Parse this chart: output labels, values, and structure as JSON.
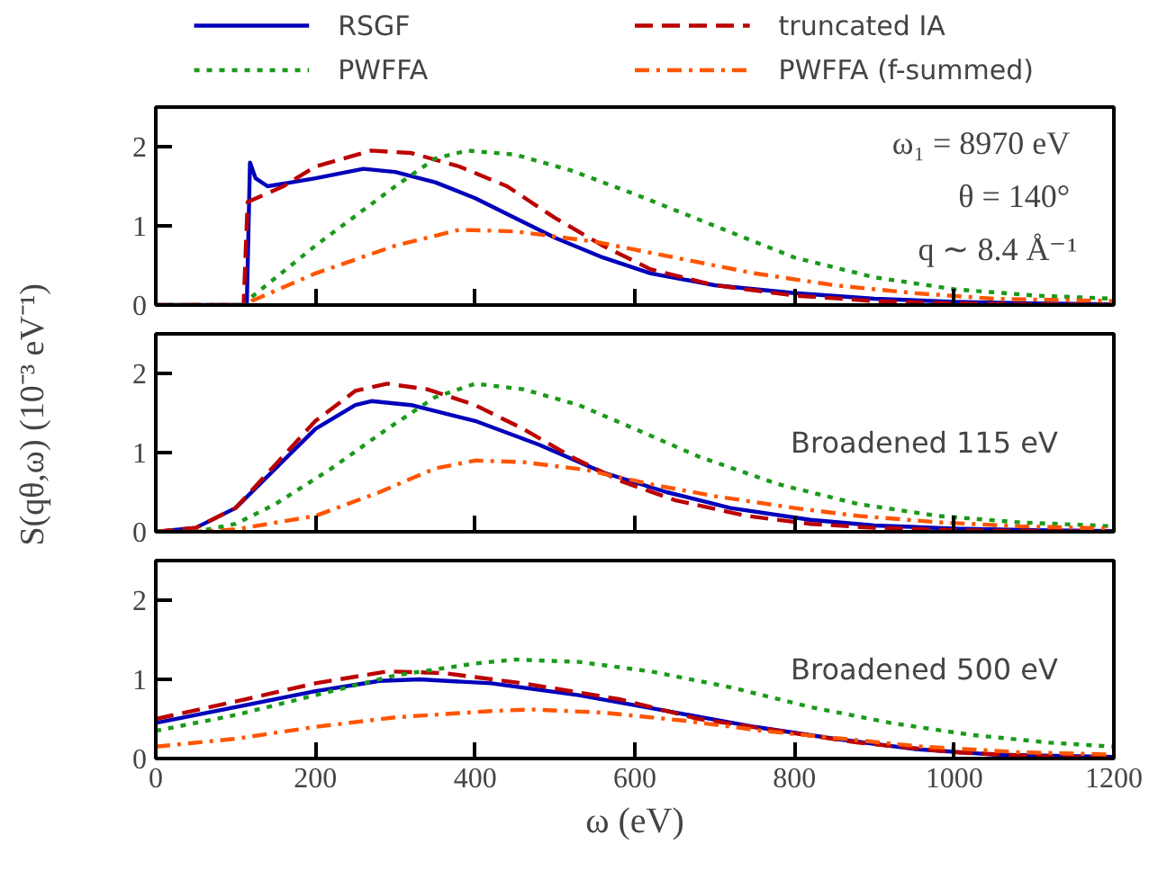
{
  "chart_data": [
    {
      "type": "line",
      "legend": "top",
      "tick_labels": "y",
      "xlim": [
        0,
        1200
      ],
      "xticks": [
        0,
        200,
        400,
        600,
        800,
        1000,
        1200
      ],
      "ylim": [
        0,
        2.5
      ],
      "yticks": [
        0,
        1,
        2
      ],
      "annotations": [
        "ω₁ = 8970 eV",
        "θ = 140°",
        "q ∼ 8.4 Å⁻¹"
      ],
      "series": [
        {
          "name": "RSGF",
          "color": "#0000bb",
          "line_style": "solid",
          "x": [
            0,
            114,
            118,
            125,
            140,
            170,
            200,
            260,
            300,
            350,
            400,
            450,
            500,
            560,
            620,
            700,
            800,
            900,
            1000,
            1100,
            1200
          ],
          "values": [
            0,
            0,
            1.8,
            1.6,
            1.5,
            1.55,
            1.6,
            1.72,
            1.68,
            1.55,
            1.35,
            1.1,
            0.85,
            0.6,
            0.4,
            0.25,
            0.15,
            0.08,
            0.04,
            0.02,
            0.01
          ]
        },
        {
          "name": "truncated IA",
          "color": "#bb0000",
          "line_style": "dashed",
          "x": [
            0,
            110,
            115,
            160,
            200,
            270,
            320,
            380,
            440,
            500,
            560,
            620,
            700,
            800,
            900,
            1000,
            1100,
            1200
          ],
          "values": [
            0,
            0,
            1.3,
            1.5,
            1.75,
            1.95,
            1.92,
            1.75,
            1.5,
            1.1,
            0.75,
            0.45,
            0.25,
            0.12,
            0.05,
            0.02,
            0.01,
            0
          ]
        },
        {
          "name": "PWFFA",
          "color": "#1a9a1a",
          "line_style": "dotted",
          "x": [
            0,
            115,
            120,
            200,
            300,
            350,
            390,
            450,
            520,
            600,
            700,
            800,
            900,
            1000,
            1100,
            1200
          ],
          "values": [
            0,
            0,
            0.1,
            0.75,
            1.5,
            1.85,
            1.95,
            1.9,
            1.7,
            1.4,
            1.0,
            0.6,
            0.35,
            0.2,
            0.12,
            0.08
          ]
        },
        {
          "name": "PWFFA (f-summed)",
          "color": "#ff5500",
          "line_style": "dashdot",
          "x": [
            0,
            115,
            120,
            200,
            300,
            380,
            450,
            550,
            650,
            750,
            850,
            950,
            1050,
            1200
          ],
          "values": [
            0,
            0,
            0.05,
            0.4,
            0.75,
            0.95,
            0.93,
            0.8,
            0.6,
            0.4,
            0.25,
            0.15,
            0.08,
            0.05
          ]
        }
      ]
    },
    {
      "type": "line",
      "tick_labels": "y",
      "xlim": [
        0,
        1200
      ],
      "xticks": [
        0,
        200,
        400,
        600,
        800,
        1000,
        1200
      ],
      "ylim": [
        0,
        2.5
      ],
      "yticks": [
        0,
        1,
        2
      ],
      "ylabel": "S(qθ,ω) (10⁻³ eV⁻¹)",
      "annotations": [
        "Broadened 115 eV"
      ],
      "series": [
        {
          "color": "#0000bb",
          "line_style": "solid",
          "x": [
            0,
            50,
            100,
            150,
            200,
            250,
            270,
            320,
            400,
            480,
            560,
            640,
            720,
            820,
            900,
            1000,
            1100,
            1200
          ],
          "values": [
            0,
            0.05,
            0.3,
            0.8,
            1.3,
            1.6,
            1.65,
            1.6,
            1.4,
            1.1,
            0.75,
            0.5,
            0.3,
            0.15,
            0.08,
            0.04,
            0.02,
            0.01
          ]
        },
        {
          "color": "#bb0000",
          "line_style": "dashed",
          "x": [
            0,
            50,
            100,
            150,
            200,
            250,
            290,
            340,
            400,
            460,
            520,
            580,
            650,
            740,
            820,
            900,
            1000,
            1100,
            1200
          ],
          "values": [
            0,
            0.05,
            0.3,
            0.85,
            1.4,
            1.78,
            1.87,
            1.8,
            1.6,
            1.3,
            0.95,
            0.65,
            0.4,
            0.2,
            0.1,
            0.05,
            0.02,
            0.01,
            0
          ]
        },
        {
          "color": "#1a9a1a",
          "line_style": "dotted",
          "x": [
            0,
            50,
            100,
            150,
            220,
            290,
            350,
            400,
            460,
            530,
            600,
            680,
            780,
            880,
            980,
            1080,
            1200
          ],
          "values": [
            0,
            0,
            0.1,
            0.35,
            0.8,
            1.3,
            1.7,
            1.87,
            1.8,
            1.6,
            1.3,
            0.95,
            0.6,
            0.35,
            0.2,
            0.12,
            0.07
          ]
        },
        {
          "color": "#ff5500",
          "line_style": "dashdot",
          "x": [
            0,
            50,
            100,
            200,
            280,
            350,
            400,
            460,
            540,
            620,
            700,
            800,
            880,
            980,
            1080,
            1200
          ],
          "values": [
            0,
            0,
            0.03,
            0.2,
            0.5,
            0.8,
            0.9,
            0.88,
            0.78,
            0.6,
            0.45,
            0.3,
            0.2,
            0.12,
            0.07,
            0.04
          ]
        }
      ]
    },
    {
      "type": "line",
      "xlim": [
        0,
        1200
      ],
      "xticks": [
        0,
        200,
        400,
        600,
        800,
        1000,
        1200
      ],
      "ylim": [
        0,
        2.5
      ],
      "yticks": [
        0,
        1,
        2
      ],
      "xlabel": "ω (eV)",
      "annotations": [
        "Broadened 500 eV"
      ],
      "series": [
        {
          "color": "#0000bb",
          "line_style": "solid",
          "x": [
            0,
            100,
            200,
            280,
            330,
            420,
            530,
            640,
            750,
            850,
            950,
            1050,
            1200
          ],
          "values": [
            0.45,
            0.65,
            0.85,
            0.98,
            1.0,
            0.95,
            0.8,
            0.6,
            0.4,
            0.25,
            0.12,
            0.05,
            0.02
          ]
        },
        {
          "color": "#bb0000",
          "line_style": "dashed",
          "x": [
            0,
            100,
            200,
            290,
            360,
            460,
            580,
            680,
            780,
            880,
            1000,
            1100,
            1200
          ],
          "values": [
            0.5,
            0.72,
            0.95,
            1.1,
            1.08,
            0.95,
            0.75,
            0.5,
            0.35,
            0.2,
            0.08,
            0.03,
            0.01
          ]
        },
        {
          "color": "#1a9a1a",
          "line_style": "dotted",
          "x": [
            0,
            100,
            200,
            300,
            400,
            450,
            530,
            620,
            720,
            820,
            920,
            1020,
            1120,
            1200
          ],
          "values": [
            0.35,
            0.55,
            0.8,
            1.05,
            1.2,
            1.25,
            1.22,
            1.1,
            0.9,
            0.65,
            0.45,
            0.3,
            0.2,
            0.15
          ]
        },
        {
          "color": "#ff5500",
          "line_style": "dashdot",
          "x": [
            0,
            100,
            200,
            300,
            420,
            470,
            560,
            660,
            760,
            860,
            960,
            1080,
            1200
          ],
          "values": [
            0.15,
            0.25,
            0.4,
            0.52,
            0.6,
            0.62,
            0.58,
            0.48,
            0.35,
            0.25,
            0.15,
            0.08,
            0.05
          ]
        }
      ]
    }
  ]
}
